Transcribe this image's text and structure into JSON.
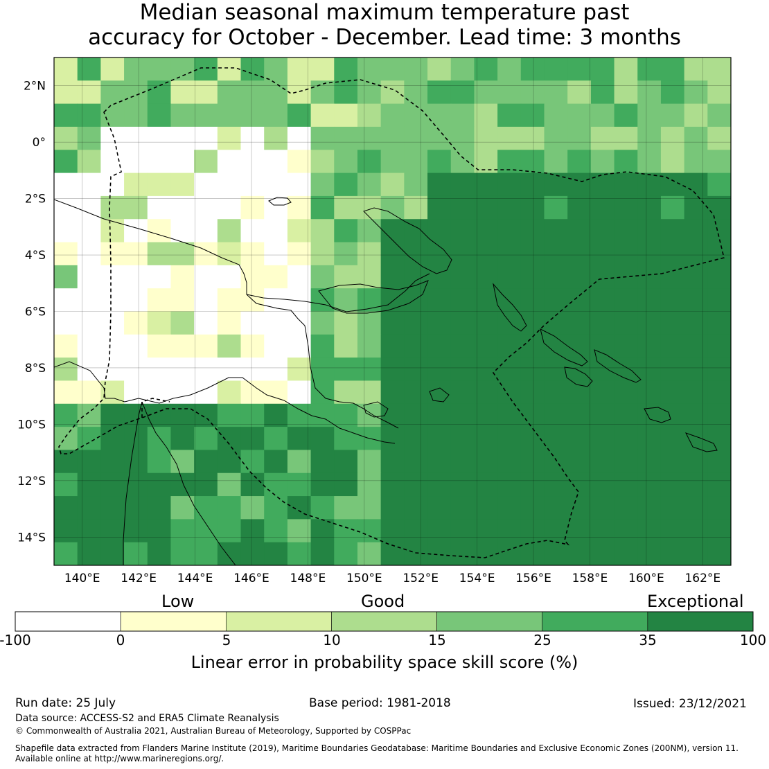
{
  "title": {
    "line1": "Median seasonal maximum temperature past",
    "line2": "accuracy for October - December. Lead time: 3 months"
  },
  "map": {
    "lat_labels": [
      "2°N",
      "0°",
      "2°S",
      "4°S",
      "6°S",
      "8°S",
      "10°S",
      "12°S",
      "14°S"
    ],
    "lon_labels": [
      "140°E",
      "142°E",
      "144°E",
      "146°E",
      "148°E",
      "150°E",
      "152°E",
      "154°E",
      "156°E",
      "158°E",
      "160°E",
      "162°E"
    ],
    "extent": {
      "lon_min": 139,
      "lon_max": 163,
      "lat_min": -15,
      "lat_max": 3
    },
    "grid": true,
    "dominant_category": "35 to 100 (Exceptional) over open ocean east of 150°E; lower scores (white/yellow) over mainland Papua New Guinea"
  },
  "colorbar": {
    "category_labels": [
      "Low",
      "Good",
      "Exceptional"
    ],
    "ticks": [
      "-100",
      "0",
      "5",
      "10",
      "15",
      "25",
      "35",
      "100"
    ],
    "colors": [
      "#ffffff",
      "#ffffcc",
      "#d9f0a3",
      "#addd8e",
      "#78c679",
      "#41ab5d",
      "#238443"
    ],
    "label": "Linear error in probability space skill score (%)"
  },
  "footer": {
    "run_date": "Run date: 25 July",
    "base_period": "Base period: 1981-2018",
    "issued": "Issued: 23/12/2021",
    "data_source": "Data source: ACCESS-S2 and ERA5 Climate Reanalysis",
    "copyright": "© Commonwealth of Australia 2021, Australian Bureau of Meteorology, Supported by COSPPac",
    "shapefile_line1": "Shapefile data extracted from Flanders Marine Institute (2019), Maritime Boundaries Geodatabase: Maritime Boundaries and Exclusive Economic Zones (200NM), version 11.",
    "shapefile_line2": "Available online at http://www.marineregions.org/."
  }
}
